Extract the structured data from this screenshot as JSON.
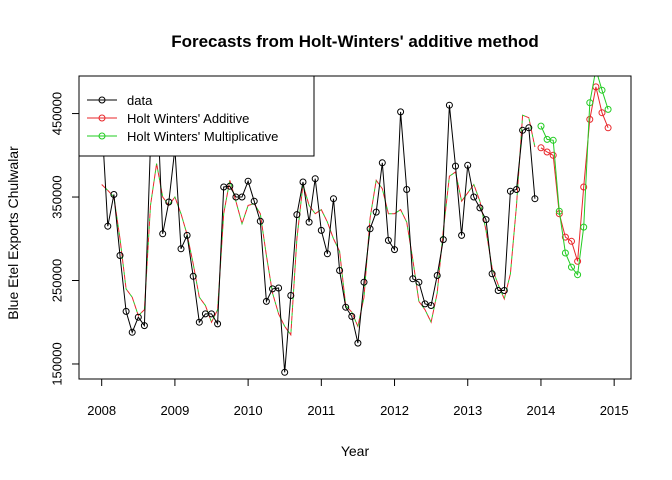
{
  "chart_data": {
    "type": "line",
    "title": "Forecasts from Holt-Winters' additive method",
    "xlabel": "Year",
    "ylabel": "Blue Etel Exports Chulwalar",
    "xlim": [
      2007.69,
      2015.23
    ],
    "ylim": [
      132000,
      495000
    ],
    "x_ticks": [
      2008,
      2009,
      2010,
      2011,
      2012,
      2013,
      2014,
      2015
    ],
    "y_ticks": [
      150000,
      250000,
      350000,
      450000
    ],
    "y_tick_labels": [
      "150000",
      "250000",
      "350000",
      "450000"
    ],
    "legend_position": "top-left",
    "series": [
      {
        "name": "data",
        "color": "#000000",
        "style": "line+points",
        "start": 2008.0,
        "step": 0.0833333,
        "values": [
          443000,
          315000,
          353000,
          280000,
          213000,
          188000,
          206000,
          196000,
          414000,
          483000,
          306000,
          344000,
          408000,
          288000,
          304000,
          255000,
          200000,
          210000,
          210000,
          198000,
          362000,
          363000,
          350000,
          350000,
          369000,
          345000,
          321000,
          225000,
          240000,
          241000,
          140000,
          232000,
          329000,
          368000,
          320000,
          372000,
          310000,
          282000,
          348000,
          262000,
          218000,
          207000,
          175000,
          248000,
          312000,
          332000,
          391000,
          298000,
          287000,
          452000,
          359000,
          252000,
          248000,
          222000,
          220000,
          256000,
          299000,
          460000,
          387000,
          304000,
          388000,
          350000,
          337000,
          323000,
          258000,
          238000,
          238000,
          357000,
          359000,
          430000,
          433000,
          348000
        ]
      },
      {
        "name": "Holt Winters' Additive",
        "color": "#e8262a",
        "style": "line+points",
        "start": 2014.0,
        "step": 0.0833333,
        "values": [
          409000,
          404000,
          400000,
          330000,
          302000,
          297000,
          273000,
          362000,
          443000,
          482000,
          451000,
          433000
        ]
      },
      {
        "name": "Holt Winters' Multiplicative",
        "color": "#22cc22",
        "style": "line+points",
        "start": 2014.0,
        "step": 0.0833333,
        "values": [
          435000,
          419000,
          418000,
          333000,
          283000,
          266000,
          257000,
          314000,
          463000,
          503000,
          478000,
          455000
        ]
      },
      {
        "name": "data-fitted",
        "legend": false,
        "colors": [
          "#e8262a",
          "#22cc22"
        ],
        "style": "dashed",
        "start": 2008.0,
        "step": 0.0833333,
        "values": [
          365000,
          358000,
          350000,
          300000,
          240000,
          230000,
          208000,
          215000,
          340000,
          390000,
          350000,
          340000,
          350000,
          330000,
          305000,
          270000,
          230000,
          220000,
          200000,
          215000,
          330000,
          370000,
          345000,
          318000,
          340000,
          342000,
          330000,
          280000,
          235000,
          210000,
          195000,
          185000,
          300000,
          365000,
          340000,
          330000,
          335000,
          320000,
          300000,
          285000,
          220000,
          212000,
          195000,
          230000,
          325000,
          370000,
          360000,
          330000,
          330000,
          335000,
          320000,
          275000,
          225000,
          215000,
          200000,
          235000,
          310000,
          375000,
          380000,
          345000,
          355000,
          365000,
          345000,
          310000,
          265000,
          245000,
          228000,
          258000,
          340000,
          448000,
          445000,
          410000
        ]
      }
    ]
  }
}
